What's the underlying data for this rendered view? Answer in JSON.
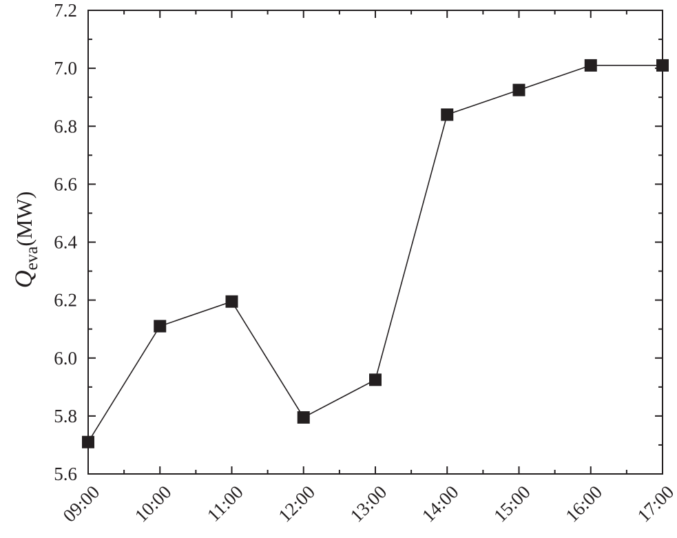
{
  "chart_data": {
    "type": "line",
    "title": "",
    "xlabel": "",
    "ylabel": {
      "symbol": "Q",
      "subscript": "eva",
      "unit": "(MW)"
    },
    "categories": [
      "09:00",
      "10:00",
      "11:00",
      "12:00",
      "13:00",
      "14:00",
      "15:00",
      "16:00",
      "17:00"
    ],
    "series": [
      {
        "values": [
          5.71,
          6.11,
          6.195,
          5.795,
          5.925,
          6.84,
          6.925,
          7.01,
          7.01
        ],
        "marker": "square",
        "color": "#231f20"
      }
    ],
    "ylim": [
      5.6,
      7.2
    ],
    "yticks": [
      "5.6",
      "5.8",
      "6.0",
      "6.2",
      "6.4",
      "6.6",
      "6.8",
      "7.0",
      "7.2"
    ],
    "grid": false,
    "legend": "none"
  }
}
